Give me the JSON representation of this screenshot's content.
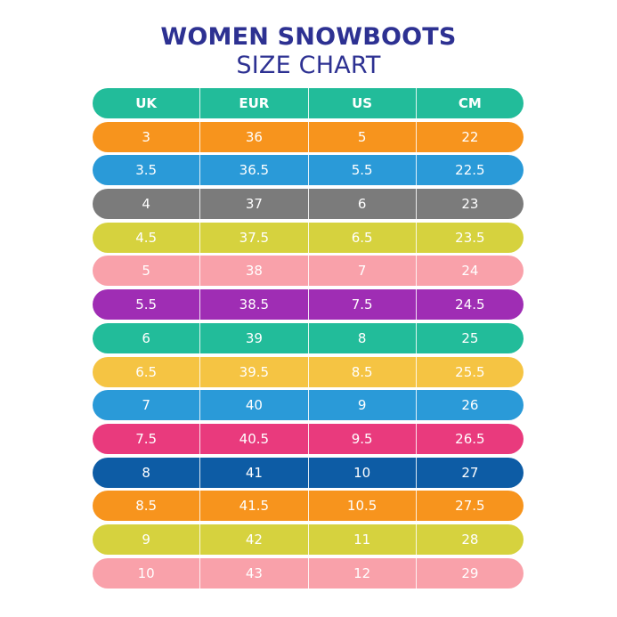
{
  "title": "WOMEN SNOWBOOTS",
  "subtitle": "SIZE CHART",
  "chart_data": {
    "type": "table",
    "columns": [
      "UK",
      "EUR",
      "US",
      "CM"
    ],
    "header_color": "#22bc9a",
    "rows": [
      {
        "values": [
          "3",
          "36",
          "5",
          "22"
        ],
        "color": "#f7941d"
      },
      {
        "values": [
          "3.5",
          "36.5",
          "5.5",
          "22.5"
        ],
        "color": "#2a9ad8"
      },
      {
        "values": [
          "4",
          "37",
          "6",
          "23"
        ],
        "color": "#7b7b7b"
      },
      {
        "values": [
          "4.5",
          "37.5",
          "6.5",
          "23.5"
        ],
        "color": "#d6d23e"
      },
      {
        "values": [
          "5",
          "38",
          "7",
          "24"
        ],
        "color": "#f9a1aa"
      },
      {
        "values": [
          "5.5",
          "38.5",
          "7.5",
          "24.5"
        ],
        "color": "#9f2db4"
      },
      {
        "values": [
          "6",
          "39",
          "8",
          "25"
        ],
        "color": "#22bc9a"
      },
      {
        "values": [
          "6.5",
          "39.5",
          "8.5",
          "25.5"
        ],
        "color": "#f5c443"
      },
      {
        "values": [
          "7",
          "40",
          "9",
          "26"
        ],
        "color": "#2a9ad8"
      },
      {
        "values": [
          "7.5",
          "40.5",
          "9.5",
          "26.5"
        ],
        "color": "#e93a7d"
      },
      {
        "values": [
          "8",
          "41",
          "10",
          "27"
        ],
        "color": "#0d5ca5"
      },
      {
        "values": [
          "8.5",
          "41.5",
          "10.5",
          "27.5"
        ],
        "color": "#f7941d"
      },
      {
        "values": [
          "9",
          "42",
          "11",
          "28"
        ],
        "color": "#d6d23e"
      },
      {
        "values": [
          "10",
          "43",
          "12",
          "29"
        ],
        "color": "#f9a1aa"
      }
    ]
  }
}
